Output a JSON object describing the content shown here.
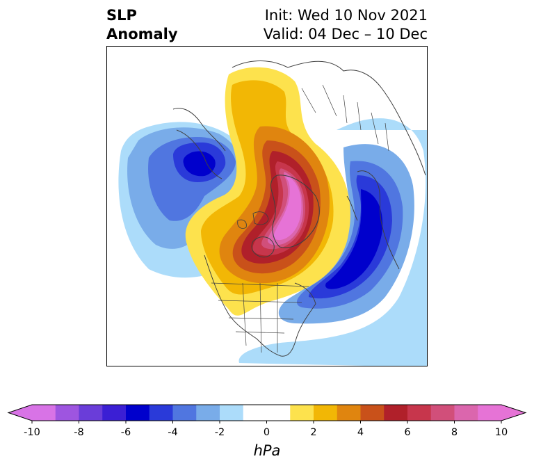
{
  "header": {
    "title_line1": "SLP",
    "title_line2": "Anomaly",
    "init_text": "Init: Wed 10 Nov 2021",
    "valid_text": "Valid: 04 Dec – 10 Dec"
  },
  "map": {
    "projection": "north-polar-stereographic",
    "variable": "Sea level pressure anomaly",
    "features": [
      {
        "name": "positive-anomaly-arctic",
        "center": "Arctic / Greenland / northern Canada",
        "peak_value": 10
      },
      {
        "name": "negative-anomaly-north-atlantic",
        "center": "North Atlantic / Western Europe",
        "peak_value": -7
      },
      {
        "name": "negative-anomaly-north-pacific",
        "center": "North Pacific / Aleutians",
        "peak_value": -7
      }
    ]
  },
  "colorbar": {
    "unit": "hPa",
    "extend": "both",
    "ticks": [
      "-10",
      "-8",
      "-6",
      "-4",
      "-2",
      "0",
      "2",
      "4",
      "6",
      "8",
      "10"
    ],
    "levels": [
      -10,
      -9,
      -8,
      -7,
      -6,
      -5,
      -4,
      -3,
      -2,
      -1,
      1,
      2,
      3,
      4,
      5,
      6,
      7,
      8,
      9,
      10
    ],
    "colors": {
      "under": "#d873e6",
      "neg": [
        "#d873e6",
        "#9e55e0",
        "#6a3dd9",
        "#3b1fd4",
        "#0000cc",
        "#2a3ad9",
        "#5076e0",
        "#79ace9",
        "#acdcfa"
      ],
      "zero": "#ffffff",
      "pos": [
        "#fde24d",
        "#f2b705",
        "#e0850f",
        "#c9511a",
        "#b0202a",
        "#c7364c",
        "#d14f7a",
        "#db66ad",
        "#e673d6"
      ],
      "over": "#e673d6"
    }
  }
}
